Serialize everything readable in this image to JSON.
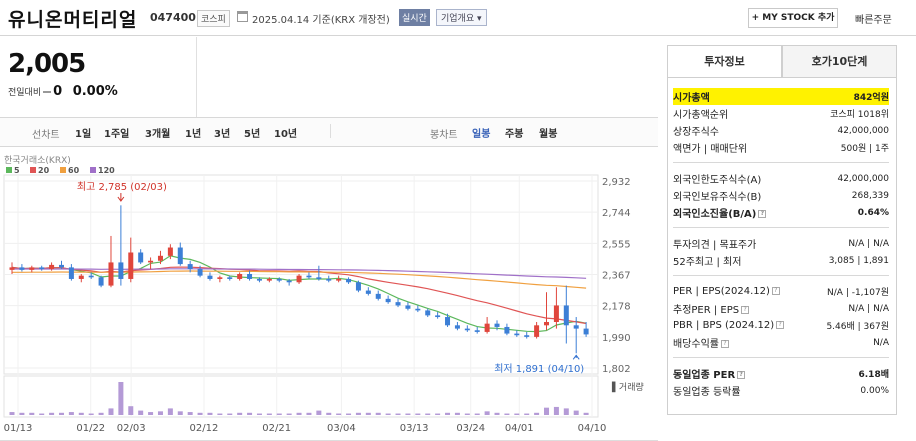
{
  "header": {
    "name": "유니온머티리얼",
    "code": "047400",
    "market": "코스피",
    "date_text": "2025.04.14  기준(KRX 개장전)",
    "realtime_label": "실시간",
    "company_label": "기업개요 ▾",
    "mystock_label": "+ MY STOCK 추가",
    "quick_order_label": "빠른주문"
  },
  "price": {
    "current": "2,005",
    "change_label": "전일대비",
    "change_value": "0",
    "change_pct": "0.00%"
  },
  "toolbar": {
    "line_label": "선차트",
    "line_items": [
      "1일",
      "1주일",
      "3개월",
      "1년",
      "3년",
      "5년",
      "10년"
    ],
    "candle_label": "봉차트",
    "candle_items": [
      "일봉",
      "주봉",
      "월봉"
    ],
    "active_candle": "일봉"
  },
  "chart_data": {
    "type": "candlestick",
    "source_label": "한국거래소(KRX)",
    "ma_legend": [
      {
        "name": "5",
        "color": "#5cb85c"
      },
      {
        "name": "20",
        "color": "#e05555"
      },
      {
        "name": "60",
        "color": "#f0a040"
      },
      {
        "name": "120",
        "color": "#a070c8"
      }
    ],
    "y_ticks": [
      "2,932",
      "2,744",
      "2,555",
      "2,367",
      "2,178",
      "1,990",
      "1,802"
    ],
    "ylim": [
      1802,
      2932
    ],
    "x_ticks": [
      "01/13",
      "01/22",
      "02/03",
      "02/12",
      "02/21",
      "03/04",
      "03/13",
      "03/24",
      "04/01",
      "04/10"
    ],
    "high_label": "최고 2,785 (02/03)",
    "low_label": "최저 1,891 (04/10)",
    "volume_label": "거래량",
    "up_color": "#e0463c",
    "down_color": "#3c7fd6",
    "candles": [
      [
        2395,
        2440,
        2370,
        2410
      ],
      [
        2410,
        2430,
        2385,
        2395
      ],
      [
        2395,
        2420,
        2380,
        2410
      ],
      [
        2410,
        2420,
        2390,
        2400
      ],
      [
        2400,
        2440,
        2390,
        2425
      ],
      [
        2425,
        2450,
        2400,
        2410
      ],
      [
        2410,
        2430,
        2330,
        2340
      ],
      [
        2340,
        2370,
        2320,
        2360
      ],
      [
        2360,
        2380,
        2340,
        2350
      ],
      [
        2350,
        2360,
        2290,
        2300
      ],
      [
        2300,
        2600,
        2290,
        2440
      ],
      [
        2440,
        2785,
        2300,
        2340
      ],
      [
        2340,
        2590,
        2320,
        2500
      ],
      [
        2500,
        2520,
        2430,
        2440
      ],
      [
        2440,
        2470,
        2400,
        2450
      ],
      [
        2450,
        2510,
        2430,
        2480
      ],
      [
        2480,
        2550,
        2460,
        2530
      ],
      [
        2530,
        2560,
        2420,
        2430
      ],
      [
        2430,
        2450,
        2380,
        2400
      ],
      [
        2400,
        2420,
        2350,
        2360
      ],
      [
        2360,
        2380,
        2330,
        2340
      ],
      [
        2340,
        2360,
        2320,
        2350
      ],
      [
        2350,
        2360,
        2330,
        2340
      ],
      [
        2340,
        2380,
        2330,
        2370
      ],
      [
        2370,
        2390,
        2330,
        2340
      ],
      [
        2340,
        2350,
        2320,
        2330
      ],
      [
        2330,
        2350,
        2320,
        2340
      ],
      [
        2340,
        2350,
        2320,
        2330
      ],
      [
        2330,
        2340,
        2300,
        2320
      ],
      [
        2320,
        2370,
        2310,
        2360
      ],
      [
        2360,
        2380,
        2340,
        2350
      ],
      [
        2350,
        2420,
        2330,
        2340
      ],
      [
        2340,
        2360,
        2320,
        2330
      ],
      [
        2330,
        2360,
        2320,
        2340
      ],
      [
        2340,
        2350,
        2310,
        2320
      ],
      [
        2320,
        2330,
        2260,
        2270
      ],
      [
        2270,
        2290,
        2240,
        2250
      ],
      [
        2250,
        2270,
        2210,
        2220
      ],
      [
        2220,
        2240,
        2190,
        2200
      ],
      [
        2200,
        2220,
        2170,
        2180
      ],
      [
        2180,
        2200,
        2150,
        2160
      ],
      [
        2160,
        2180,
        2140,
        2150
      ],
      [
        2150,
        2160,
        2110,
        2120
      ],
      [
        2120,
        2140,
        2100,
        2110
      ],
      [
        2110,
        2130,
        2050,
        2060
      ],
      [
        2060,
        2080,
        2030,
        2040
      ],
      [
        2040,
        2060,
        2020,
        2030
      ],
      [
        2030,
        2050,
        2010,
        2020
      ],
      [
        2020,
        2110,
        2010,
        2070
      ],
      [
        2070,
        2090,
        2030,
        2050
      ],
      [
        2050,
        2070,
        2000,
        2010
      ],
      [
        2010,
        2030,
        1990,
        2000
      ],
      [
        2000,
        2020,
        1980,
        1990
      ],
      [
        1990,
        2080,
        1980,
        2060
      ],
      [
        2060,
        2260,
        2030,
        2080
      ],
      [
        2080,
        2290,
        2040,
        2180
      ],
      [
        2180,
        2300,
        1950,
        2060
      ],
      [
        2060,
        2110,
        1891,
        2040
      ],
      [
        2040,
        2080,
        1990,
        2005
      ]
    ],
    "volumes": [
      4,
      3,
      3,
      2,
      3,
      3,
      4,
      3,
      2,
      3,
      9,
      45,
      12,
      6,
      4,
      5,
      9,
      5,
      4,
      3,
      3,
      2,
      2,
      3,
      3,
      2,
      2,
      2,
      2,
      3,
      3,
      6,
      3,
      2,
      2,
      3,
      3,
      3,
      2,
      2,
      2,
      2,
      2,
      2,
      3,
      3,
      2,
      2,
      5,
      3,
      2,
      2,
      2,
      3,
      10,
      11,
      9,
      6,
      3
    ]
  },
  "invest": {
    "tabs": [
      "투자정보",
      "호가10단계"
    ],
    "market_cap_label": "시가총액",
    "market_cap_value": "842억원",
    "rank_label": "시가총액순위",
    "rank_value": "코스피 1018위",
    "shares_label": "상장주식수",
    "shares_value": "42,000,000",
    "face_label": "액면가 | 매매단위",
    "face_value": "500원 | 1주",
    "foreign_limit_label": "외국인한도주식수(A)",
    "foreign_limit_value": "42,000,000",
    "foreign_hold_label": "외국인보유주식수(B)",
    "foreign_hold_value": "268,339",
    "foreign_ratio_label": "외국인소진율(B/A)",
    "foreign_ratio_value": "0.64%",
    "opinion_label": "투자의견 | 목표주가",
    "opinion_value": "N/A | N/A",
    "w52_label": "52주최고 | 최저",
    "w52_value": "3,085 | 1,891",
    "per_label": "PER | EPS(2024.12)",
    "per_value": "N/A | -1,107원",
    "est_per_label": "추정PER | EPS",
    "est_per_value": "N/A | N/A",
    "pbr_label": "PBR | BPS (2024.12)",
    "pbr_value": "5.46배 | 367원",
    "div_label": "배당수익률",
    "div_value": "N/A",
    "sector_per_label": "동일업종 PER",
    "sector_per_value": "6.18배",
    "sector_rate_label": "동일업종 등락률",
    "sector_rate_value": "0.00%"
  }
}
